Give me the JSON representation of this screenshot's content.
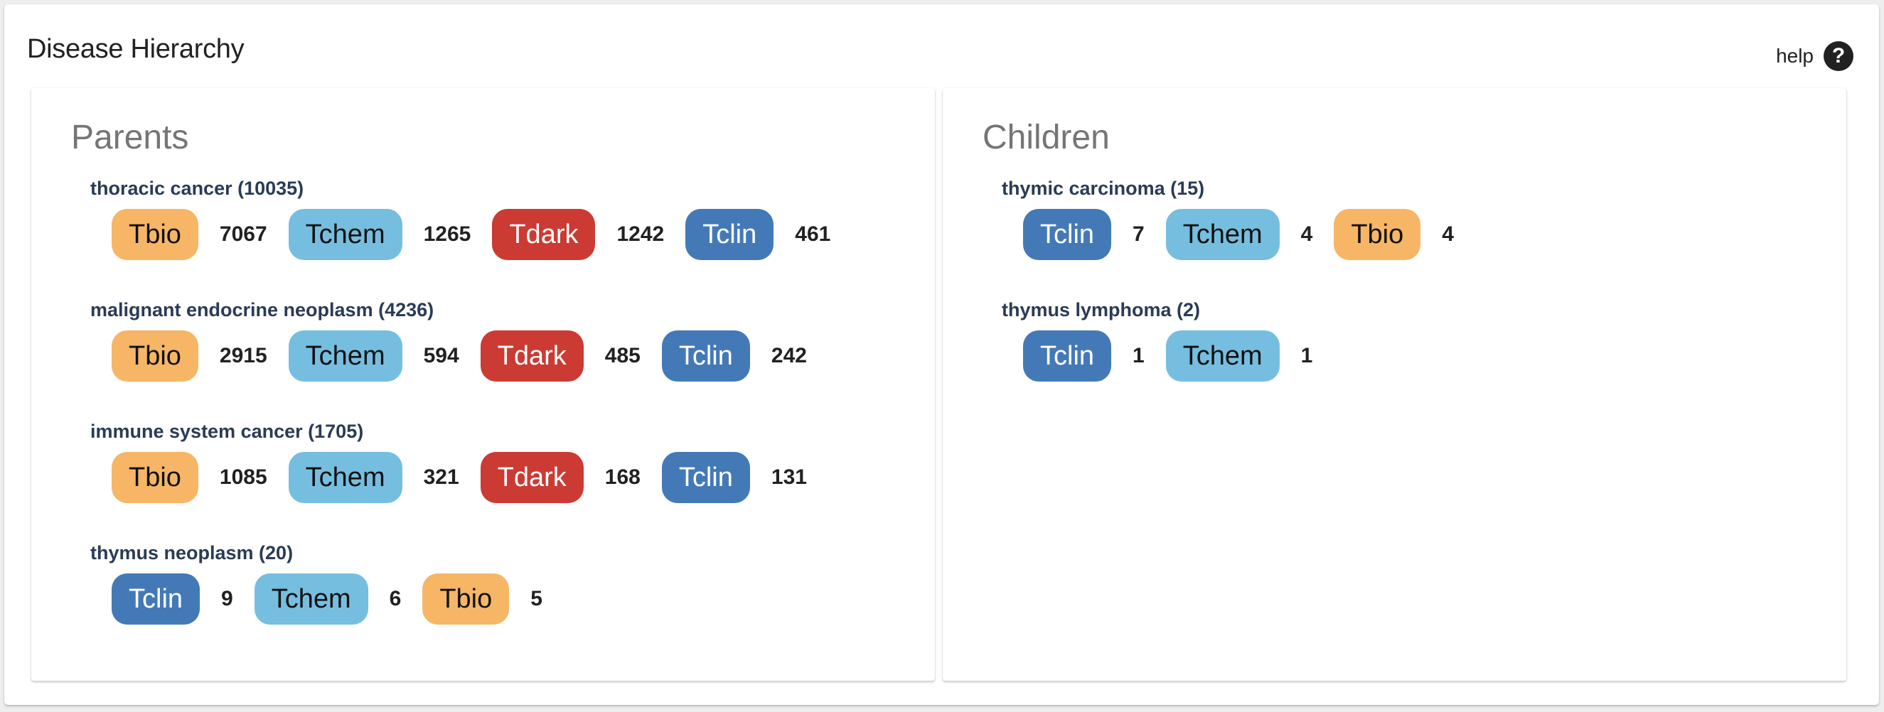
{
  "title": "Disease Hierarchy",
  "help": {
    "label": "help",
    "icon": "question-circle-icon"
  },
  "tdl_colors": {
    "Tbio": "#f6b666",
    "Tchem": "#76bedf",
    "Tdark": "#cb3a33",
    "Tclin": "#4479b7"
  },
  "parents": {
    "title": "Parents",
    "items": [
      {
        "name": "thoracic cancer (10035)",
        "targets": [
          {
            "tdl": "Tbio",
            "count": "7067"
          },
          {
            "tdl": "Tchem",
            "count": "1265"
          },
          {
            "tdl": "Tdark",
            "count": "1242"
          },
          {
            "tdl": "Tclin",
            "count": "461"
          }
        ]
      },
      {
        "name": "malignant endocrine neoplasm (4236)",
        "targets": [
          {
            "tdl": "Tbio",
            "count": "2915"
          },
          {
            "tdl": "Tchem",
            "count": "594"
          },
          {
            "tdl": "Tdark",
            "count": "485"
          },
          {
            "tdl": "Tclin",
            "count": "242"
          }
        ]
      },
      {
        "name": "immune system cancer (1705)",
        "targets": [
          {
            "tdl": "Tbio",
            "count": "1085"
          },
          {
            "tdl": "Tchem",
            "count": "321"
          },
          {
            "tdl": "Tdark",
            "count": "168"
          },
          {
            "tdl": "Tclin",
            "count": "131"
          }
        ]
      },
      {
        "name": "thymus neoplasm (20)",
        "targets": [
          {
            "tdl": "Tclin",
            "count": "9"
          },
          {
            "tdl": "Tchem",
            "count": "6"
          },
          {
            "tdl": "Tbio",
            "count": "5"
          }
        ]
      }
    ]
  },
  "children": {
    "title": "Children",
    "items": [
      {
        "name": "thymic carcinoma (15)",
        "targets": [
          {
            "tdl": "Tclin",
            "count": "7"
          },
          {
            "tdl": "Tchem",
            "count": "4"
          },
          {
            "tdl": "Tbio",
            "count": "4"
          }
        ]
      },
      {
        "name": "thymus lymphoma (2)",
        "targets": [
          {
            "tdl": "Tclin",
            "count": "1"
          },
          {
            "tdl": "Tchem",
            "count": "1"
          }
        ]
      }
    ]
  }
}
